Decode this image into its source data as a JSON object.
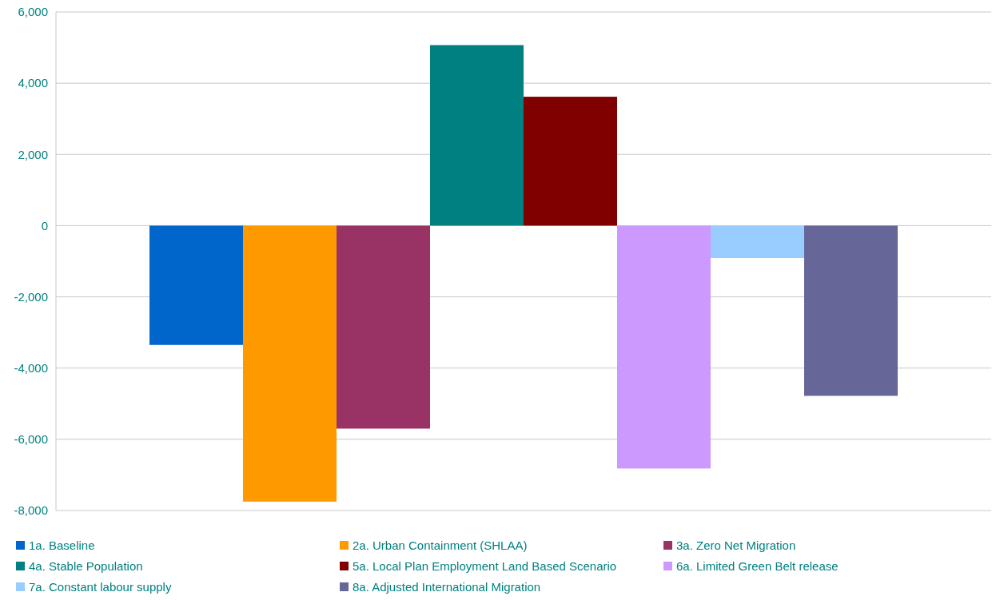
{
  "chart_data": {
    "type": "bar",
    "categories": [
      null
    ],
    "series": [
      {
        "name": "1a. Baseline",
        "color": "#0066cc",
        "values": [
          -3350
        ]
      },
      {
        "name": "2a. Urban Containment (SHLAA)",
        "color": "#ff9900",
        "values": [
          -7750
        ]
      },
      {
        "name": "3a. Zero Net Migration",
        "color": "#993366",
        "values": [
          -5700
        ]
      },
      {
        "name": "4a. Stable Population",
        "color": "#008080",
        "values": [
          5070
        ]
      },
      {
        "name": "5a. Local Plan Employment Land Based Scenario",
        "color": "#800000",
        "values": [
          3620
        ]
      },
      {
        "name": "6a. Limited Green Belt release",
        "color": "#cc99ff",
        "values": [
          -6820
        ]
      },
      {
        "name": "7a. Constant labour supply",
        "color": "#99ccff",
        "values": [
          -910
        ]
      },
      {
        "name": "8a. Adjusted International Migration",
        "color": "#666699",
        "values": [
          -4780
        ]
      }
    ],
    "ylim": [
      -8000,
      6000
    ],
    "yticks": [
      {
        "value": -8000,
        "label": "-8,000"
      },
      {
        "value": -6000,
        "label": "-6,000"
      },
      {
        "value": -4000,
        "label": "-4,000"
      },
      {
        "value": -2000,
        "label": "-2,000"
      },
      0,
      {
        "value": 2000,
        "label": "2,000"
      },
      {
        "value": 4000,
        "label": "4,000"
      },
      {
        "value": 6000,
        "label": "6,000"
      }
    ],
    "grid": "y",
    "legend": "bottom"
  }
}
